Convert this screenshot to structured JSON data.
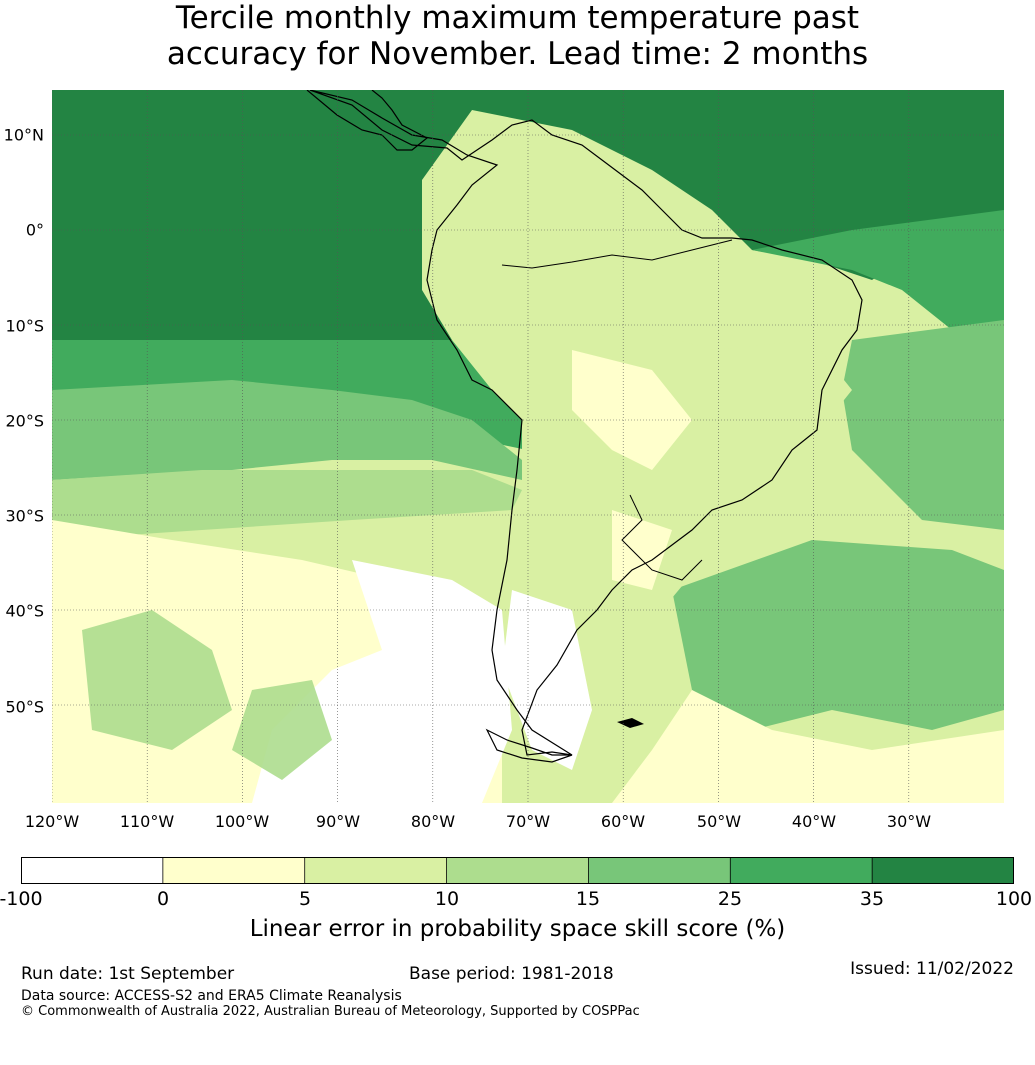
{
  "title_line1": "Tercile monthly maximum temperature past",
  "title_line2": "accuracy for November. Lead time: 2 months",
  "map": {
    "lon_ticks": [
      "120°W",
      "110°W",
      "100°W",
      "90°W",
      "80°W",
      "70°W",
      "60°W",
      "50°W",
      "40°W",
      "30°W"
    ],
    "lat_ticks": [
      "10°N",
      "0°",
      "10°S",
      "20°S",
      "30°S",
      "40°S",
      "50°S"
    ],
    "lon_values": [
      -120,
      -110,
      -100,
      -90,
      -80,
      -70,
      -60,
      -50,
      -40,
      -30
    ],
    "lat_values": [
      10,
      0,
      -10,
      -20,
      -30,
      -40,
      -50
    ],
    "lon_range": [
      -125.5,
      -25.5
    ],
    "lat_range": [
      15,
      -60
    ],
    "coastline_color": "#000000"
  },
  "colorbar": {
    "bins": [
      {
        "label": "-100",
        "color": "#ffffff"
      },
      {
        "label": "0",
        "color": "#ffffcc"
      },
      {
        "label": "5",
        "color": "#d9f0a3"
      },
      {
        "label": "10",
        "color": "#addd8e"
      },
      {
        "label": "15",
        "color": "#78c679"
      },
      {
        "label": "25",
        "color": "#41ab5d"
      },
      {
        "label": "35",
        "color": "#238443"
      }
    ],
    "end_label": "100",
    "label": "Linear error in probability space skill score (%)"
  },
  "footer": {
    "run_date": "Run date: 1st September",
    "base_period": "Base period: 1981-2018",
    "issued": "Issued: 11/02/2022",
    "data_source": "Data source: ACCESS-S2 and ERA5 Climate Reanalysis",
    "copyright": "© Commonwealth of Australia 2022, Australian Bureau of Meteorology, Supported by COSPPac"
  }
}
